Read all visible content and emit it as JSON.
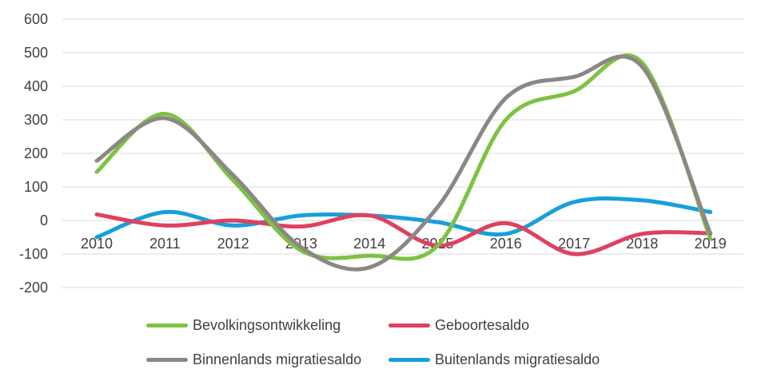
{
  "chart_data": {
    "type": "line",
    "smooth": true,
    "categories": [
      "2010",
      "2011",
      "2012",
      "2013",
      "2014",
      "2015",
      "2016",
      "2017",
      "2018",
      "2019"
    ],
    "ylim": [
      -200,
      600
    ],
    "yticks": [
      -200,
      -100,
      0,
      100,
      200,
      300,
      400,
      500,
      600
    ],
    "grid": true,
    "legend_position": "bottom",
    "series": [
      {
        "name": "Bevolkingsontwikkeling",
        "color": "#7dc242",
        "values": [
          145,
          318,
          120,
          -90,
          -105,
          -75,
          300,
          385,
          470,
          -55
        ]
      },
      {
        "name": "Geboortesaldo",
        "color": "#e0405e",
        "values": [
          18,
          -15,
          0,
          -18,
          15,
          -75,
          -8,
          -100,
          -40,
          -38
        ]
      },
      {
        "name": "Binnenlands migratiesaldo",
        "color": "#8c8784",
        "values": [
          178,
          305,
          135,
          -80,
          -140,
          40,
          365,
          428,
          458,
          -40
        ]
      },
      {
        "name": "Buitenlands migratiesaldo",
        "color": "#169fdc",
        "values": [
          -50,
          25,
          -15,
          15,
          15,
          -5,
          -40,
          55,
          60,
          25
        ]
      }
    ]
  }
}
